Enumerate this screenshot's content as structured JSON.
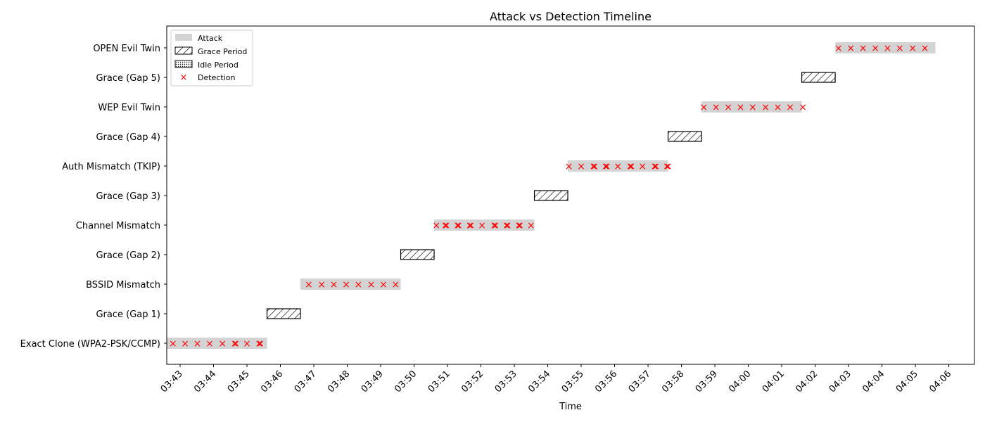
{
  "chart_data": {
    "type": "timeline",
    "title": "Attack vs Detection Timeline",
    "xlabel": "Time",
    "ylabel": "",
    "x_ticks": [
      "03:43",
      "03:44",
      "03:45",
      "03:46",
      "03:47",
      "03:48",
      "03:49",
      "03:50",
      "03:51",
      "03:52",
      "03:53",
      "03:54",
      "03:55",
      "03:56",
      "03:57",
      "03:58",
      "03:59",
      "04:00",
      "04:01",
      "04:02",
      "04:03",
      "04:04",
      "04:05",
      "04:06"
    ],
    "xlim": [
      "03:42:36",
      "04:06:46"
    ],
    "categories": [
      "Exact Clone (WPA2-PSK/CCMP)",
      "Grace (Gap 1)",
      "BSSID Mismatch",
      "Grace (Gap 2)",
      "Channel Mismatch",
      "Grace (Gap 3)",
      "Auth Mismatch (TKIP)",
      "Grace (Gap 4)",
      "WEP Evil Twin",
      "Grace (Gap 5)",
      "OPEN Evil Twin"
    ],
    "legend": {
      "placement": "top-left",
      "entries": [
        {
          "label": "Attack",
          "kind": "attack"
        },
        {
          "label": "Grace Period",
          "kind": "grace"
        },
        {
          "label": "Idle Period",
          "kind": "idle"
        },
        {
          "label": "Detection",
          "kind": "detection"
        }
      ]
    },
    "colors": {
      "attack": "#d3d3d3",
      "detection": "#ff0000",
      "outline": "#000000"
    },
    "periods": [
      {
        "category": "Exact Clone (WPA2-PSK/CCMP)",
        "kind": "attack",
        "start": "03:42:36",
        "end": "03:45:36"
      },
      {
        "category": "Grace (Gap 1)",
        "kind": "grace",
        "start": "03:45:36",
        "end": "03:46:36"
      },
      {
        "category": "BSSID Mismatch",
        "kind": "attack",
        "start": "03:46:36",
        "end": "03:49:36"
      },
      {
        "category": "Grace (Gap 2)",
        "kind": "grace",
        "start": "03:49:36",
        "end": "03:50:36"
      },
      {
        "category": "Channel Mismatch",
        "kind": "attack",
        "start": "03:50:36",
        "end": "03:53:36"
      },
      {
        "category": "Grace (Gap 3)",
        "kind": "grace",
        "start": "03:53:36",
        "end": "03:54:36"
      },
      {
        "category": "Auth Mismatch (TKIP)",
        "kind": "attack",
        "start": "03:54:36",
        "end": "03:57:36"
      },
      {
        "category": "Grace (Gap 4)",
        "kind": "grace",
        "start": "03:57:36",
        "end": "03:58:36"
      },
      {
        "category": "WEP Evil Twin",
        "kind": "attack",
        "start": "03:58:36",
        "end": "04:01:36"
      },
      {
        "category": "Grace (Gap 5)",
        "kind": "grace",
        "start": "04:01:36",
        "end": "04:02:36"
      },
      {
        "category": "OPEN Evil Twin",
        "kind": "attack",
        "start": "04:02:36",
        "end": "04:05:36"
      }
    ],
    "detections": [
      {
        "category": "Exact Clone (WPA2-PSK/CCMP)",
        "times": [
          "03:42:47",
          "03:43:09",
          "03:43:31",
          "03:43:53",
          "03:44:16",
          "03:44:38",
          "03:44:40",
          "03:45:00",
          "03:45:22",
          "03:45:24"
        ]
      },
      {
        "category": "BSSID Mismatch",
        "times": [
          "03:46:51",
          "03:47:14",
          "03:47:36",
          "03:47:58",
          "03:48:20",
          "03:48:43",
          "03:49:05",
          "03:49:27"
        ]
      },
      {
        "category": "Channel Mismatch",
        "times": [
          "03:50:40",
          "03:50:56",
          "03:50:58",
          "03:51:18",
          "03:51:20",
          "03:51:40",
          "03:51:42",
          "03:52:02",
          "03:52:24",
          "03:52:26",
          "03:52:46",
          "03:52:48",
          "03:53:08",
          "03:53:10",
          "03:53:30"
        ]
      },
      {
        "category": "Auth Mismatch (TKIP)",
        "times": [
          "03:54:38",
          "03:55:00",
          "03:55:22",
          "03:55:24",
          "03:55:44",
          "03:55:46",
          "03:56:06",
          "03:56:28",
          "03:56:30",
          "03:56:50",
          "03:57:12",
          "03:57:14",
          "03:57:34",
          "03:57:36"
        ]
      },
      {
        "category": "WEP Evil Twin",
        "times": [
          "03:58:40",
          "03:59:02",
          "03:59:24",
          "03:59:46",
          "04:00:08",
          "04:00:31",
          "04:00:53",
          "04:01:15",
          "04:01:38"
        ]
      },
      {
        "category": "OPEN Evil Twin",
        "times": [
          "04:02:42",
          "04:03:04",
          "04:03:26",
          "04:03:48",
          "04:04:10",
          "04:04:32",
          "04:04:55",
          "04:05:17"
        ]
      }
    ]
  }
}
